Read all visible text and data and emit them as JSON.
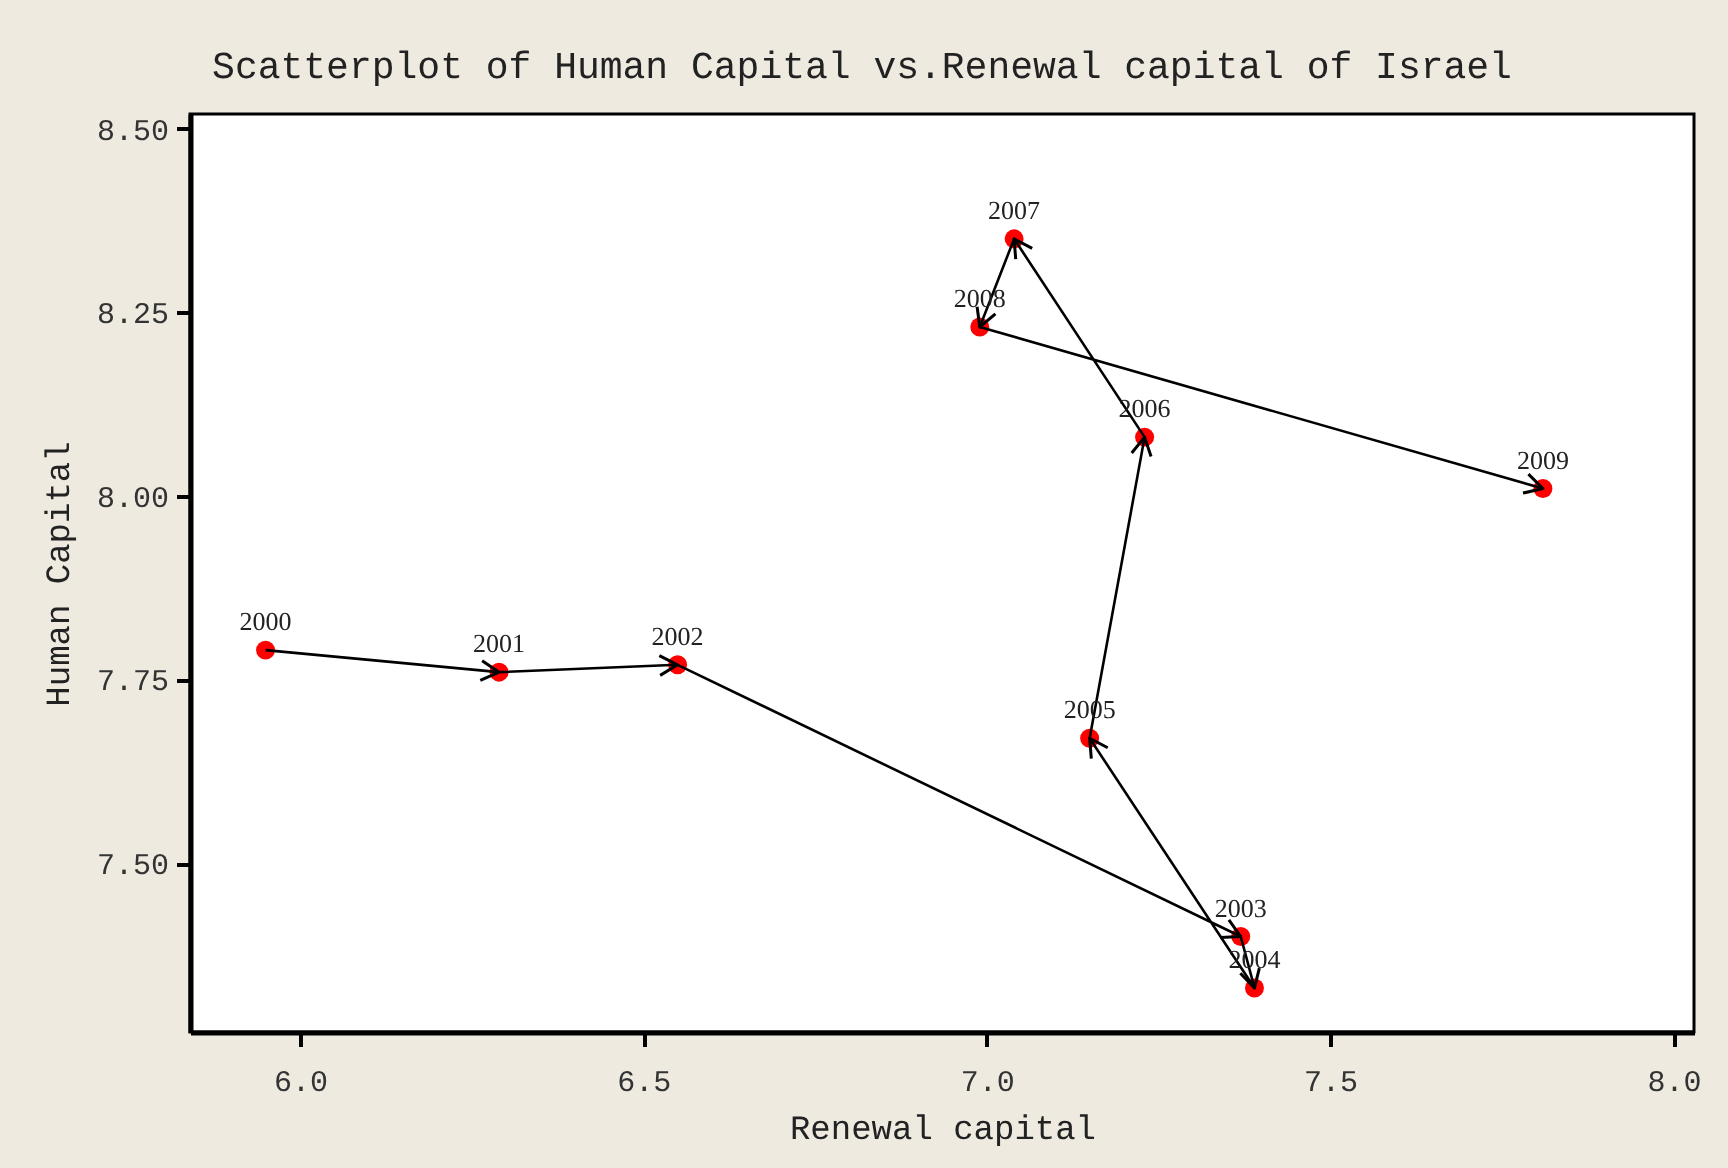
{
  "chart_data": {
    "type": "scatter",
    "title": "Scatterplot of Human Capital vs.Renewal capital of Israel",
    "xlabel": "Renewal capital",
    "ylabel": "Human Capital",
    "x": [
      5.95,
      6.29,
      6.55,
      7.37,
      7.39,
      7.15,
      7.23,
      7.04,
      6.99,
      7.81
    ],
    "series": [
      {
        "type": "line",
        "color": "#000000",
        "marker": "none",
        "values": [
          7.79,
          7.76,
          7.77,
          7.4,
          7.33,
          7.67,
          8.08,
          8.35,
          8.23,
          8.01
        ]
      },
      {
        "color": "#ff0000",
        "marker": "circle",
        "values": [
          7.79,
          7.76,
          7.77,
          7.4,
          7.33,
          7.67,
          8.08,
          8.35,
          8.23,
          8.01
        ]
      }
    ],
    "annotations": [
      {
        "text": "2000",
        "x": 5.95,
        "y": 7.79
      },
      {
        "text": "2001",
        "x": 6.29,
        "y": 7.76
      },
      {
        "text": "2002",
        "x": 6.55,
        "y": 7.77
      },
      {
        "text": "2003",
        "x": 7.37,
        "y": 7.4
      },
      {
        "text": "2004",
        "x": 7.39,
        "y": 7.33
      },
      {
        "text": "2005",
        "x": 7.15,
        "y": 7.67
      },
      {
        "text": "2006",
        "x": 7.23,
        "y": 8.08
      },
      {
        "text": "2007",
        "x": 7.04,
        "y": 8.35
      },
      {
        "text": "2008",
        "x": 6.99,
        "y": 8.23
      },
      {
        "text": "2009",
        "x": 7.81,
        "y": 8.01
      }
    ],
    "xlim": [
      5.84,
      8.03
    ],
    "ylim": [
      7.27,
      8.52
    ],
    "xticks": [
      {
        "value": 6,
        "label": "6.0"
      },
      {
        "value": 6.5,
        "label": "6.5"
      },
      {
        "value": 7,
        "label": "7.0"
      },
      {
        "value": 7.5,
        "label": "7.5"
      },
      {
        "value": 8,
        "label": "8.0"
      }
    ],
    "yticks": [
      {
        "value": 7.5,
        "label": "7.50"
      },
      {
        "value": 7.75,
        "label": "7.75"
      },
      {
        "value": 8,
        "label": "8.00"
      },
      {
        "value": 8.25,
        "label": "8.25"
      },
      {
        "value": 8.5,
        "label": "8.50"
      }
    ],
    "grid": false
  }
}
